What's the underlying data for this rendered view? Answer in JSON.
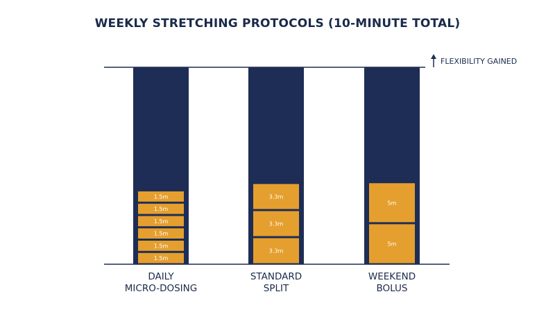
{
  "title": "WEEKLY STRETCHING PROTOCOLS (10-MINUTE TOTAL)",
  "annotation": "FLEXIBILITY GAINED",
  "colors": {
    "navy": "#1e2d55",
    "orange": "#e59f2e",
    "text": "#1a2a4a"
  },
  "chart_data": {
    "type": "bar",
    "stacked": true,
    "title": "WEEKLY STRETCHING PROTOCOLS (10-MINUTE TOTAL)",
    "categories": [
      [
        "DAILY",
        "MICRO-DOSING"
      ],
      [
        "STANDARD",
        "SPLIT"
      ],
      [
        "WEEKEND",
        "BOLUS"
      ]
    ],
    "segments": [
      {
        "values": [
          1.5,
          1.5,
          1.5,
          1.5,
          1.5,
          1.5
        ],
        "labels": [
          "1.5m",
          "1.5m",
          "1.5m",
          "1.5m",
          "1.5m",
          "1.5m"
        ]
      },
      {
        "values": [
          3.3,
          3.3,
          3.3
        ],
        "labels": [
          "3.3m",
          "3.3m",
          "3.3m"
        ]
      },
      {
        "values": [
          5,
          5
        ],
        "labels": [
          "5m",
          "5m"
        ]
      }
    ],
    "ylim": [
      0,
      24
    ],
    "top_annotation": "FLEXIBILITY GAINED"
  }
}
